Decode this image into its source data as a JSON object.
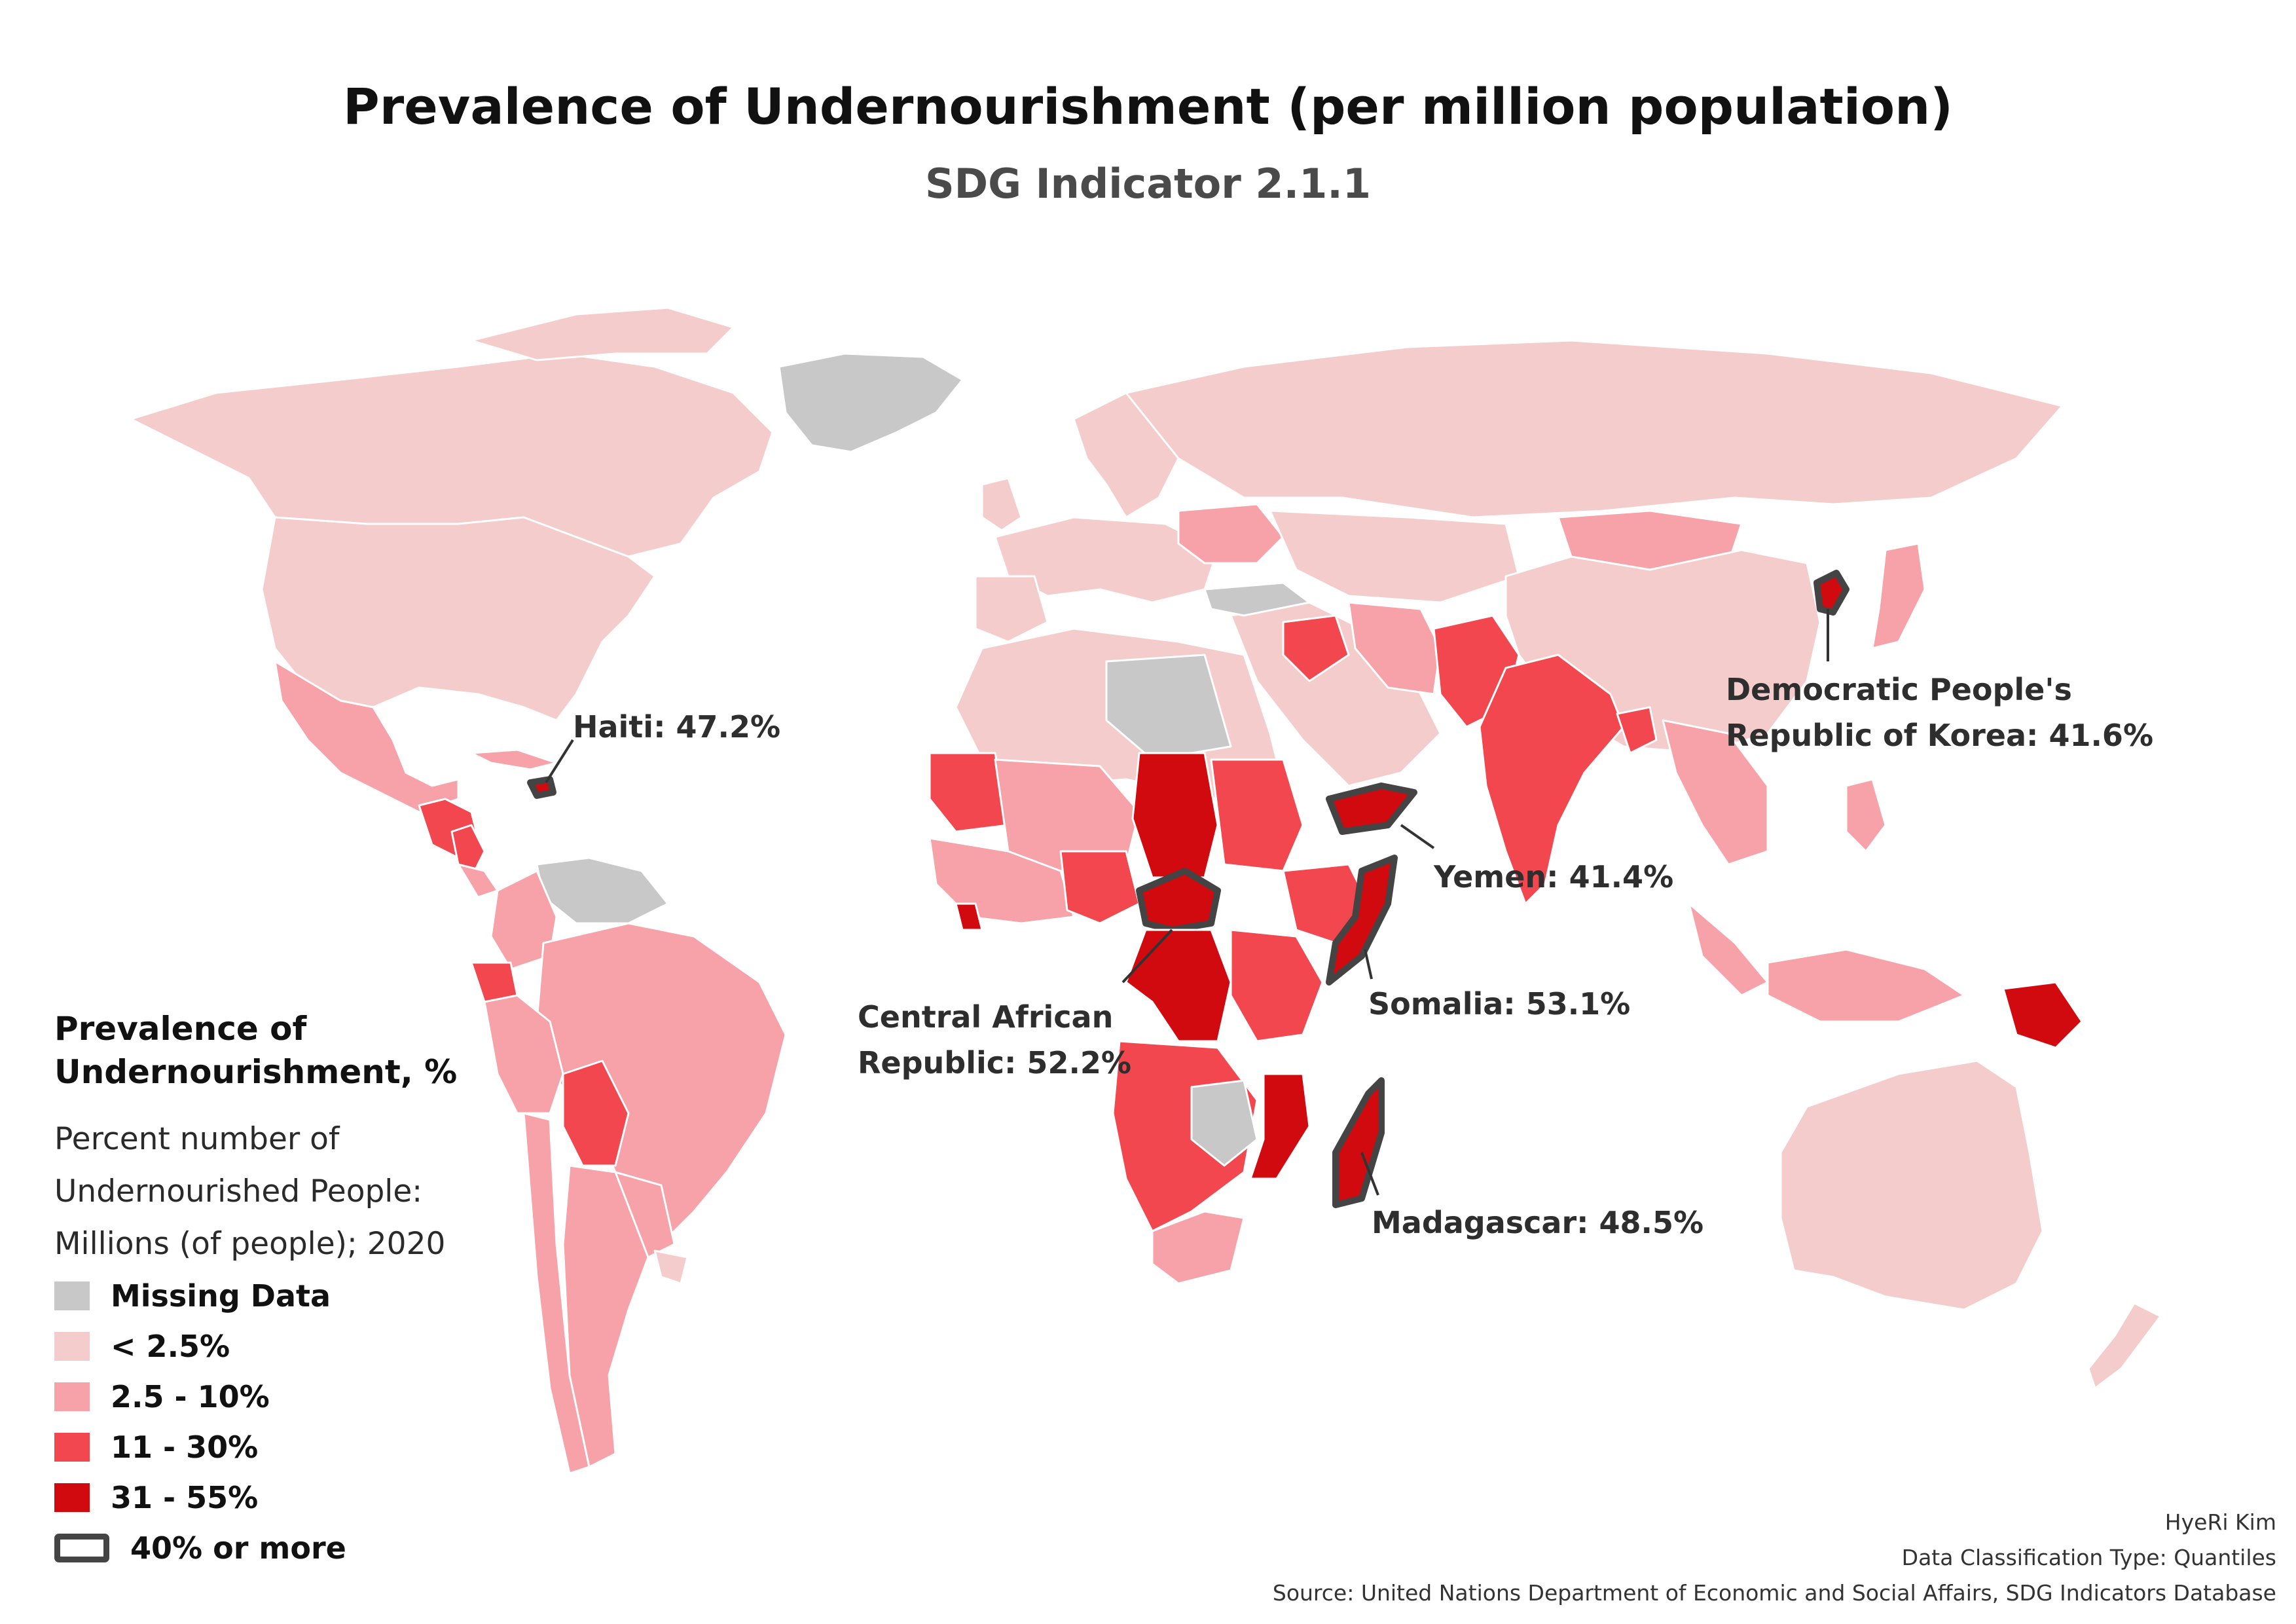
{
  "title": "Prevalence of Undernourishment (per million population)",
  "subtitle": "SDG Indicator 2.1.1",
  "colors": {
    "missing": "#c8c8c8",
    "lt_2_5": "#f4cccc",
    "2_5_to_10": "#f7a1a8",
    "11_to_30": "#f2474f",
    "31_to_55": "#d10a10",
    "highlight_outline": "#444444",
    "border": "#ffffff"
  },
  "callouts": [
    {
      "id": "haiti",
      "text": "Haiti: 47.2%"
    },
    {
      "id": "dprk",
      "lines": [
        "Democratic People's",
        "Republic of Korea: 41.6%"
      ]
    },
    {
      "id": "yemen",
      "text": "Yemen: 41.4%"
    },
    {
      "id": "car",
      "lines": [
        "Central African",
        "Republic: 52.2%"
      ]
    },
    {
      "id": "somalia",
      "text": "Somalia: 53.1%"
    },
    {
      "id": "madagascar",
      "text": "Madagascar: 48.5%"
    }
  ],
  "legend": {
    "title": "Prevalence of Undernourishment, %",
    "subtitle": "Percent number of Undernourished People: Millions (of people); 2020",
    "items": [
      {
        "label": "Missing Data",
        "class": "missing"
      },
      {
        "label": "< 2.5%",
        "class": "lt_2_5"
      },
      {
        "label": "2.5 - 10%",
        "class": "2_5_to_10"
      },
      {
        "label": "11 - 30%",
        "class": "11_to_30"
      },
      {
        "label": "31 - 55%",
        "class": "31_to_55"
      },
      {
        "label": "40% or more",
        "class": "outline"
      }
    ]
  },
  "credits": {
    "author": "HyeRi Kim",
    "classification": "Data Classification Type: Quantiles",
    "source": "Source: United Nations Department of Economic and Social Affairs, SDG Indicators Database"
  }
}
